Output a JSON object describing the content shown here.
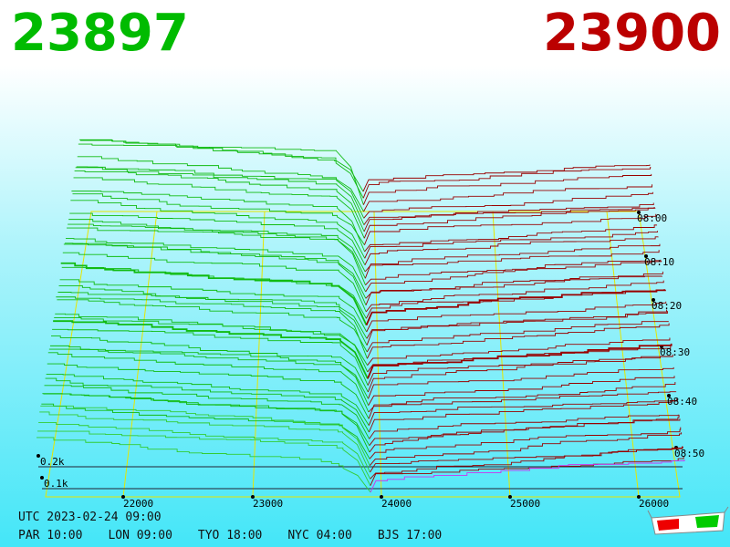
{
  "header": {
    "bid": "23897",
    "ask": "23900"
  },
  "axis": {
    "price_labels": [
      "22000",
      "23000",
      "24000",
      "25000",
      "26000"
    ],
    "time_labels": [
      "08:00",
      "08:10",
      "08:20",
      "08:30",
      "08:40",
      "08:50"
    ],
    "depth_labels": [
      "0.2k",
      "0.1k"
    ]
  },
  "footer": {
    "utc": "UTC 2023-02-24 09:00",
    "cities": [
      "PAR 10:00",
      "LON 09:00",
      "TYO 18:00",
      "NYC 04:00",
      "BJS 17:00"
    ]
  }
}
